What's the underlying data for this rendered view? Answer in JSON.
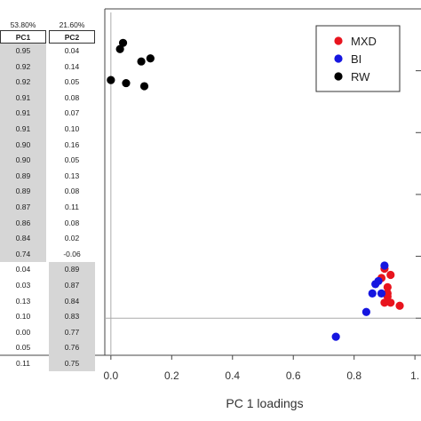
{
  "table": {
    "variance": [
      "53.80%",
      "21.60%"
    ],
    "headers": [
      "PC1",
      "PC2"
    ],
    "rows": [
      [
        "0.95",
        "0.04"
      ],
      [
        "0.92",
        "0.14"
      ],
      [
        "0.92",
        "0.05"
      ],
      [
        "0.91",
        "0.08"
      ],
      [
        "0.91",
        "0.07"
      ],
      [
        "0.91",
        "0.10"
      ],
      [
        "0.90",
        "0.16"
      ],
      [
        "0.90",
        "0.05"
      ],
      [
        "0.89",
        "0.13"
      ],
      [
        "0.89",
        "0.08"
      ],
      [
        "0.87",
        "0.11"
      ],
      [
        "0.86",
        "0.08"
      ],
      [
        "0.84",
        "0.02"
      ],
      [
        "0.74",
        "-0.06"
      ],
      [
        "0.04",
        "0.89"
      ],
      [
        "0.03",
        "0.87"
      ],
      [
        "0.13",
        "0.84"
      ],
      [
        "0.10",
        "0.83"
      ],
      [
        "0.00",
        "0.77"
      ],
      [
        "0.05",
        "0.76"
      ],
      [
        "0.11",
        "0.75"
      ]
    ],
    "shaded_pc1_rows": 14
  },
  "chart_data": {
    "type": "scatter",
    "xlabel": "PC 1 loadings",
    "ylabel": "",
    "title": "",
    "x_ticks": [
      "0.0",
      "0.2",
      "0.4",
      "0.6",
      "0.8",
      "1."
    ],
    "xlim": [
      -0.02,
      1.02
    ],
    "ylim": [
      -0.12,
      1.0
    ],
    "legend_position": "top-right",
    "series": [
      {
        "name": "MXD",
        "color": "#e8141e",
        "points": [
          [
            0.95,
            0.04
          ],
          [
            0.92,
            0.14
          ],
          [
            0.92,
            0.05
          ],
          [
            0.91,
            0.08
          ],
          [
            0.91,
            0.07
          ],
          [
            0.91,
            0.1
          ],
          [
            0.9,
            0.16
          ],
          [
            0.9,
            0.05
          ],
          [
            0.89,
            0.13
          ]
        ]
      },
      {
        "name": "BI",
        "color": "#1616e0",
        "points": [
          [
            0.89,
            0.08
          ],
          [
            0.87,
            0.11
          ],
          [
            0.86,
            0.08
          ],
          [
            0.84,
            0.02
          ],
          [
            0.74,
            -0.06
          ],
          [
            0.9,
            0.17
          ],
          [
            0.88,
            0.12
          ]
        ]
      },
      {
        "name": "RW",
        "color": "#000000",
        "points": [
          [
            0.04,
            0.89
          ],
          [
            0.03,
            0.87
          ],
          [
            0.13,
            0.84
          ],
          [
            0.1,
            0.83
          ],
          [
            0.0,
            0.77
          ],
          [
            0.05,
            0.76
          ],
          [
            0.11,
            0.75
          ]
        ]
      }
    ]
  }
}
